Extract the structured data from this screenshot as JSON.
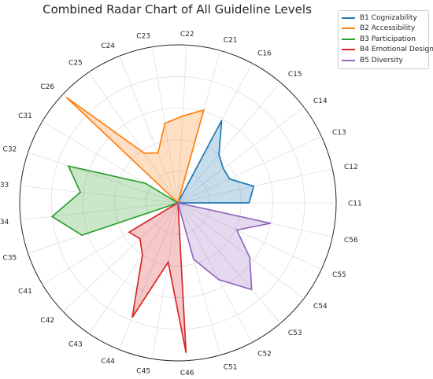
{
  "chart_data": {
    "type": "radar",
    "title": "Combined Radar Chart of All Guideline Levels",
    "categories": [
      "C11",
      "C12",
      "C13",
      "C14",
      "C15",
      "C16",
      "C21",
      "C22",
      "C23",
      "C24",
      "C25",
      "C26",
      "C31",
      "C32",
      "C33",
      "C34",
      "C35",
      "C41",
      "C42",
      "C43",
      "C44",
      "C45",
      "C46",
      "C51",
      "C52",
      "C53",
      "C54",
      "C55",
      "C56"
    ],
    "rlim": [
      0,
      1
    ],
    "grid": true,
    "legend_position": "top-right",
    "series": [
      {
        "name": "B1 Cognizability",
        "color": "#1f77b4",
        "values": [
          0.45,
          0.49,
          0.36,
          0.36,
          0.4,
          0.59,
          0,
          0,
          0,
          0,
          0,
          0,
          0,
          0,
          0,
          0,
          0,
          0,
          0,
          0,
          0,
          0,
          0,
          0,
          0,
          0,
          0,
          0,
          0
        ]
      },
      {
        "name": "B2 Accessibility",
        "color": "#ff7f0e",
        "values": [
          0,
          0,
          0,
          0,
          0,
          0,
          0.61,
          0.55,
          0.51,
          0.34,
          0.38,
          0.97,
          0,
          0,
          0,
          0,
          0,
          0,
          0,
          0,
          0,
          0,
          0,
          0,
          0,
          0,
          0,
          0,
          0
        ]
      },
      {
        "name": "B3 Participation",
        "color": "#2ca02c",
        "values": [
          0,
          0,
          0,
          0,
          0,
          0,
          0,
          0,
          0,
          0,
          0,
          0,
          0.24,
          0.73,
          0.62,
          0.8,
          0.64,
          0,
          0,
          0,
          0,
          0,
          0,
          0,
          0,
          0,
          0,
          0,
          0
        ]
      },
      {
        "name": "B4 Emotional Design",
        "color": "#d62728",
        "values": [
          0,
          0,
          0,
          0,
          0,
          0,
          0,
          0,
          0,
          0,
          0,
          0,
          0,
          0,
          0,
          0,
          0,
          0.36,
          0.33,
          0.4,
          0.78,
          0.38,
          0.95,
          0,
          0,
          0,
          0,
          0,
          0
        ]
      },
      {
        "name": "B5 Diversity",
        "color": "#9467bd",
        "values": [
          0,
          0,
          0,
          0,
          0,
          0,
          0,
          0,
          0,
          0,
          0,
          0,
          0,
          0,
          0,
          0,
          0,
          0,
          0,
          0,
          0,
          0,
          0,
          0.37,
          0.55,
          0.72,
          0.57,
          0.41,
          0.6
        ]
      }
    ]
  }
}
